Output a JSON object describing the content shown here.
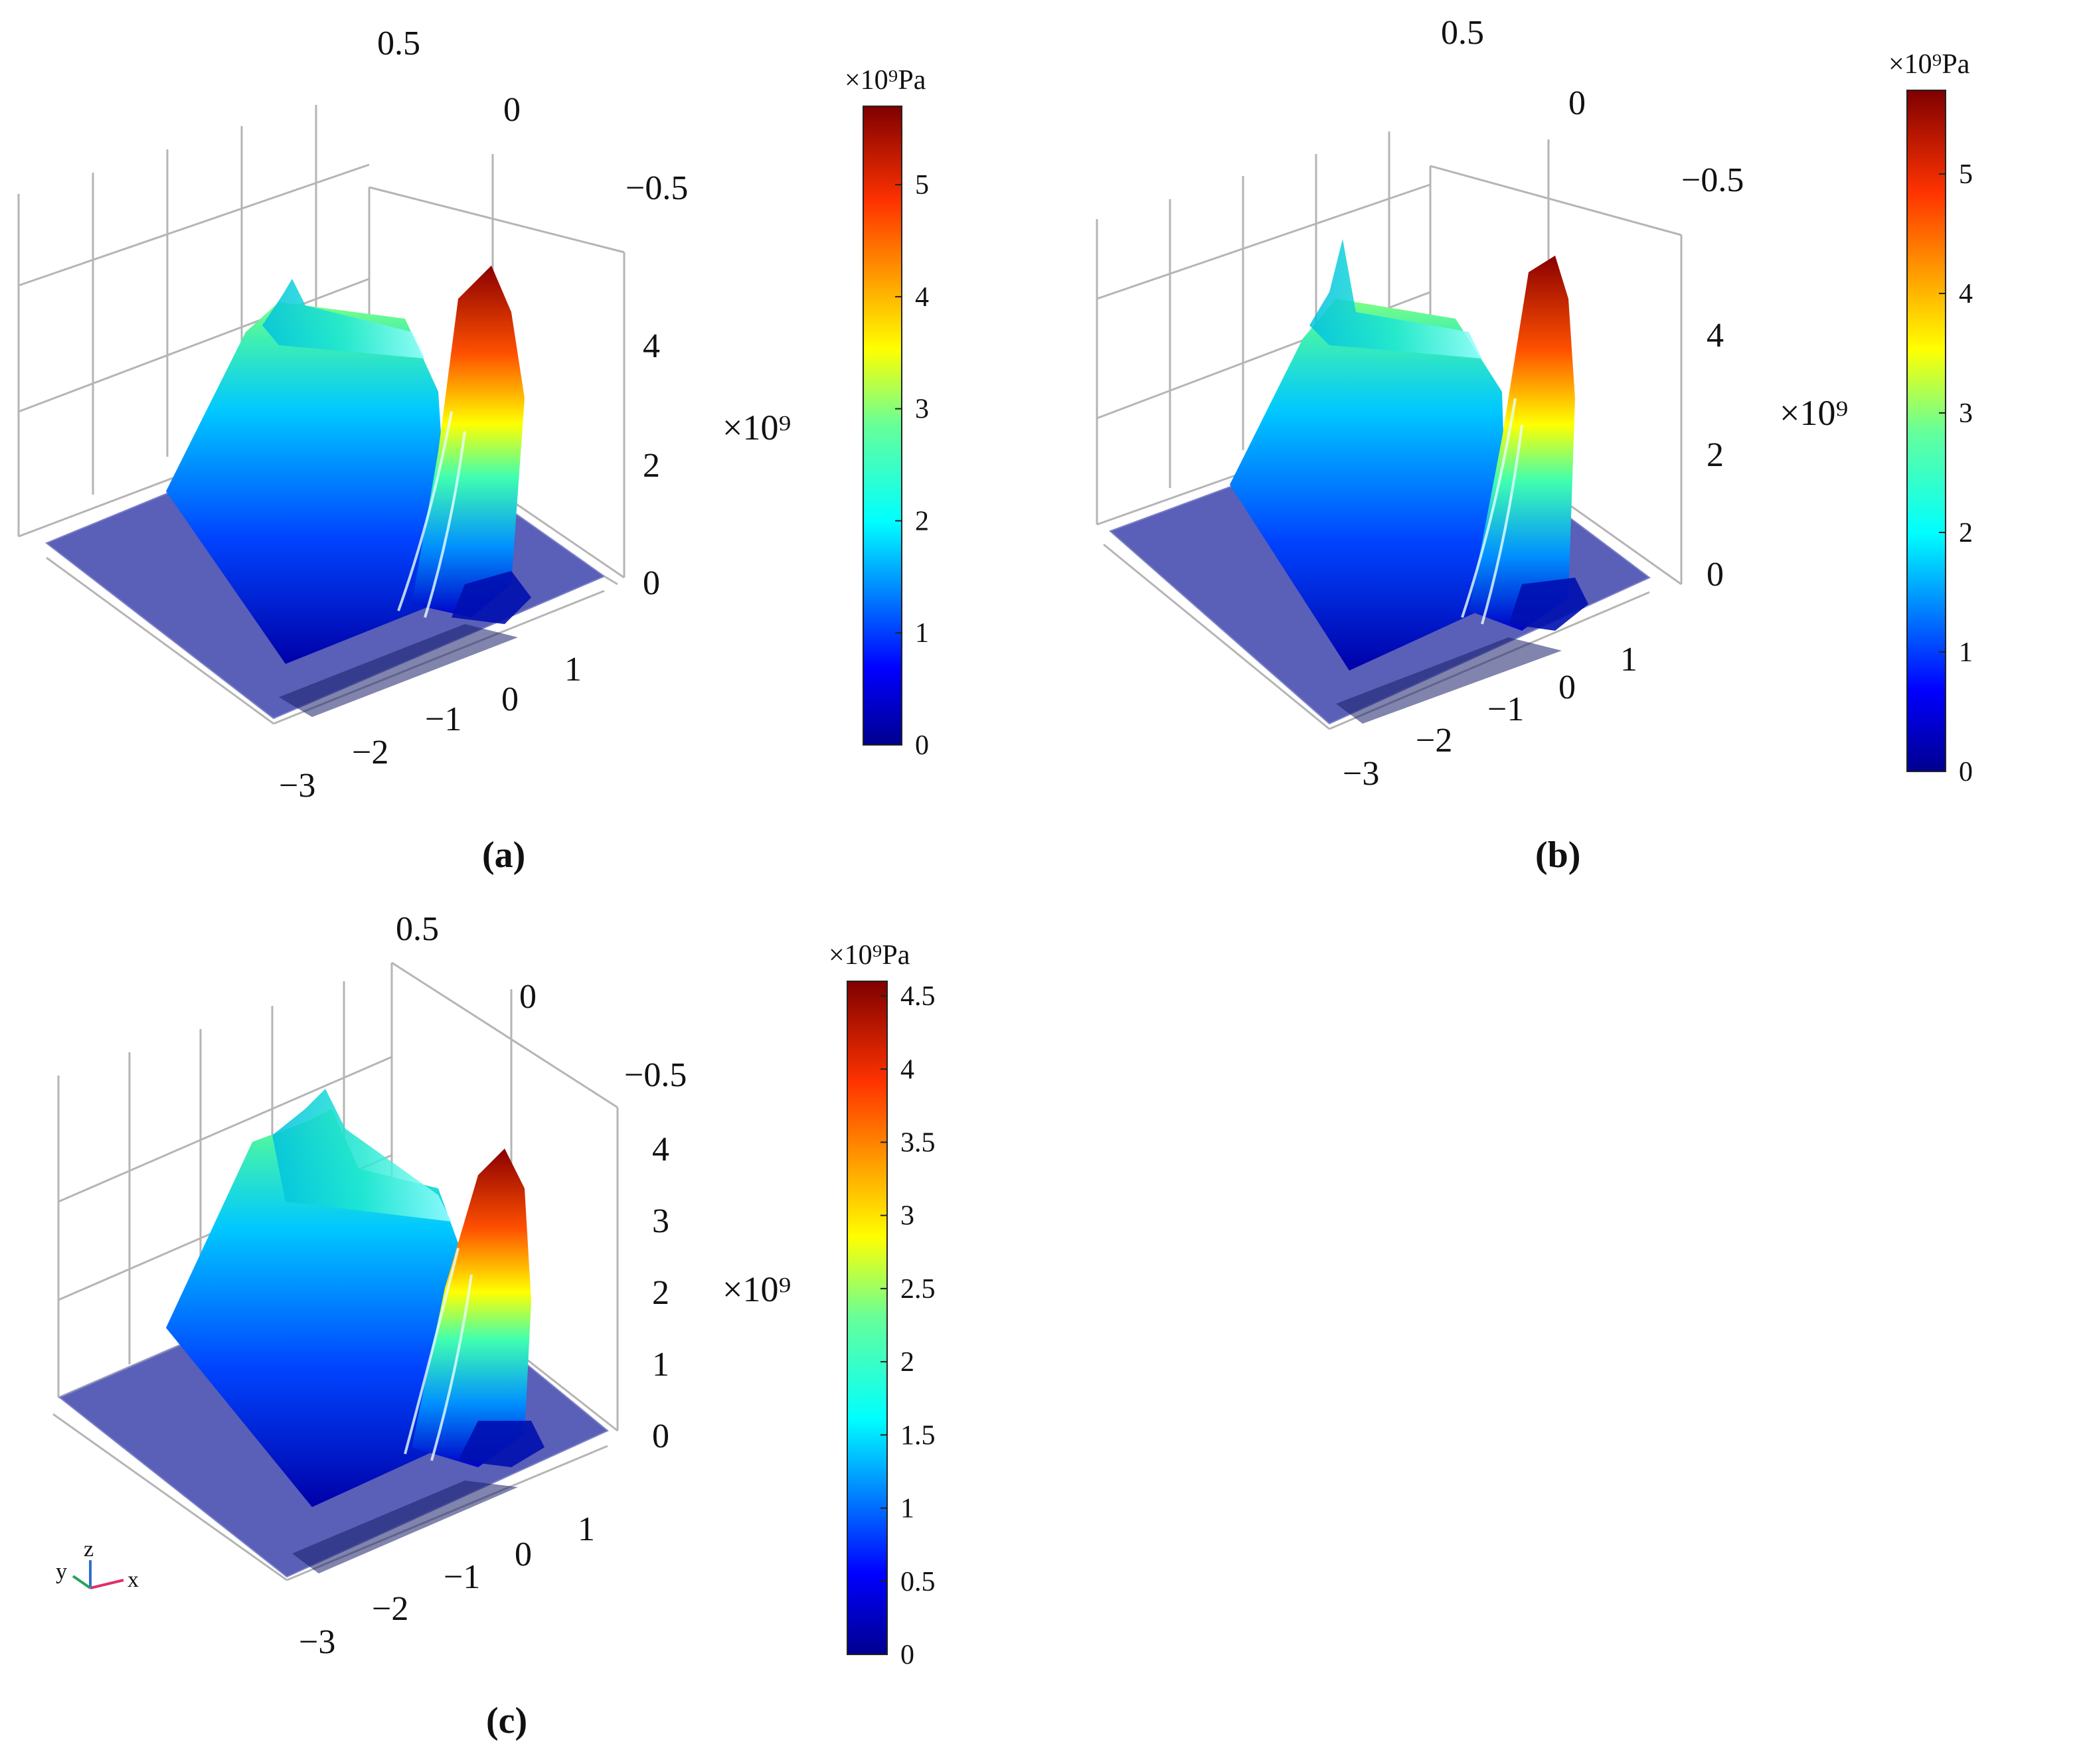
{
  "chart_data": [
    {
      "id": "a",
      "type": "surface",
      "caption": "(a)",
      "x_ticks": [
        "−3",
        "−2",
        "−1",
        "0",
        "1"
      ],
      "y_ticks": [
        "0.5",
        "0",
        "−0.5"
      ],
      "z_ticks": [
        "0",
        "2",
        "4"
      ],
      "z_multiplier": "×10⁹",
      "zlim": [
        0,
        5.7
      ],
      "colorbar": {
        "unit": "×10⁹Pa",
        "ticks": [
          "0",
          "1",
          "2",
          "3",
          "4",
          "5"
        ],
        "range": [
          0,
          5.7
        ],
        "colormap": "jet"
      },
      "surface_peaks": {
        "left_ridge": 3.8,
        "right_ridge": 5.5
      }
    },
    {
      "id": "b",
      "type": "surface",
      "caption": "(b)",
      "x_ticks": [
        "−3",
        "−2",
        "−1",
        "0",
        "1"
      ],
      "y_ticks": [
        "0.5",
        "0",
        "−0.5"
      ],
      "z_ticks": [
        "0",
        "2",
        "4"
      ],
      "z_multiplier": "×10⁹",
      "zlim": [
        0,
        5.7
      ],
      "colorbar": {
        "unit": "×10⁹Pa",
        "ticks": [
          "0",
          "1",
          "2",
          "3",
          "4",
          "5"
        ],
        "range": [
          0,
          5.7
        ],
        "colormap": "jet"
      },
      "surface_peaks": {
        "left_ridge": 3.9,
        "right_ridge": 5.6
      }
    },
    {
      "id": "c",
      "type": "surface",
      "caption": "(c)",
      "x_ticks": [
        "−3",
        "−2",
        "−1",
        "0",
        "1"
      ],
      "y_ticks": [
        "0.5",
        "0",
        "−0.5"
      ],
      "z_ticks": [
        "0",
        "1",
        "2",
        "3",
        "4"
      ],
      "z_multiplier": "×10⁹",
      "zlim": [
        0,
        4.6
      ],
      "colorbar": {
        "unit": "×10⁹Pa",
        "ticks": [
          "0",
          "0.5",
          "1",
          "1.5",
          "2",
          "2.5",
          "3",
          "3.5",
          "4",
          "4.5"
        ],
        "range": [
          0,
          4.6
        ],
        "colormap": "jet"
      },
      "surface_peaks": {
        "left_ridge": 3.5,
        "right_ridge": 4.5
      },
      "axis_triad": {
        "x": "x",
        "y": "y",
        "z": "z"
      }
    }
  ],
  "colors": {
    "plane": "#5a5fb8",
    "grid": "#b5b5b5"
  }
}
